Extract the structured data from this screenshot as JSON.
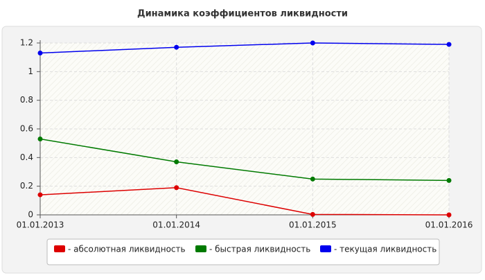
{
  "chart_data": {
    "type": "line",
    "title": "Динамика коэффициентов ликвидности",
    "categories": [
      "01.01.2013",
      "01.01.2014",
      "01.01.2015",
      "01.01.2016"
    ],
    "series": [
      {
        "name": "- абсолютная ликвидность",
        "color": "#dd0000",
        "values": [
          0.14,
          0.19,
          0.003,
          0.0
        ]
      },
      {
        "name": "- быстрая ликвидность",
        "color": "#007a00",
        "values": [
          0.53,
          0.37,
          0.25,
          0.24
        ]
      },
      {
        "name": "- текущая ликвидность",
        "color": "#0000ee",
        "values": [
          1.13,
          1.17,
          1.2,
          1.19
        ]
      }
    ],
    "ylim": [
      0,
      1.2
    ],
    "yticks": [
      0,
      0.2,
      0.4,
      0.6,
      0.8,
      1,
      1.2
    ],
    "grid": true
  }
}
